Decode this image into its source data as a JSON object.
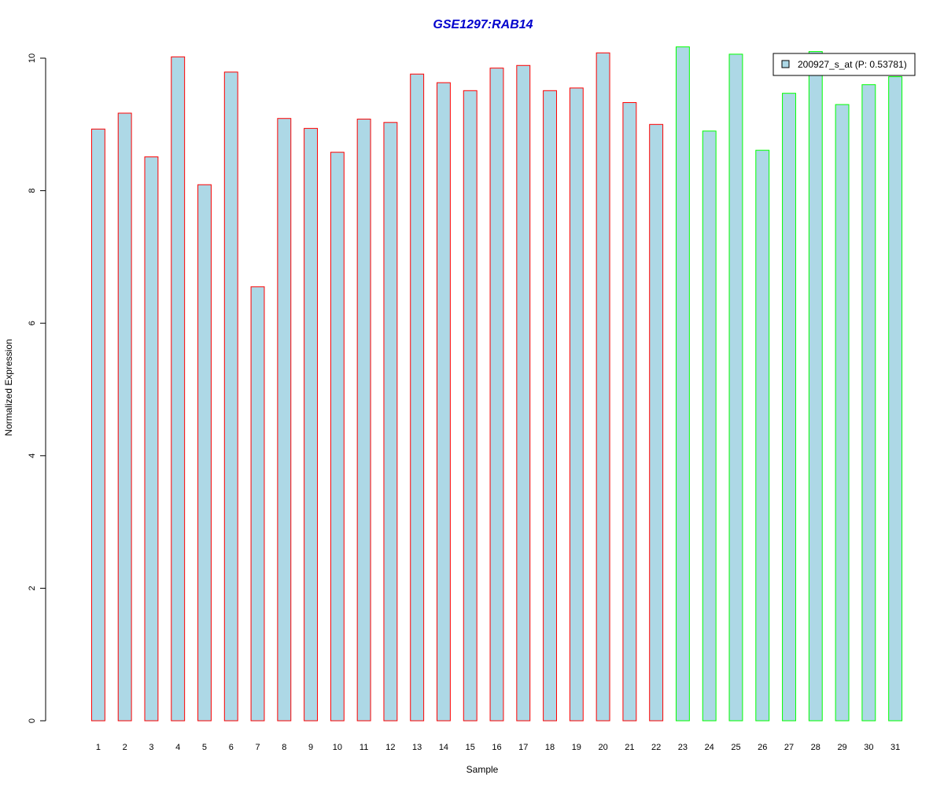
{
  "chart_data": {
    "type": "bar",
    "title": "GSE1297:RAB14",
    "xlabel": "Sample",
    "ylabel": "Normalized Expression",
    "ylim": [
      0,
      10
    ],
    "yticks": [
      0,
      2,
      4,
      6,
      8,
      10
    ],
    "categories": [
      "1",
      "2",
      "3",
      "4",
      "5",
      "6",
      "7",
      "8",
      "9",
      "10",
      "11",
      "12",
      "13",
      "14",
      "15",
      "16",
      "17",
      "18",
      "19",
      "20",
      "21",
      "22",
      "23",
      "24",
      "25",
      "26",
      "27",
      "28",
      "29",
      "30",
      "31"
    ],
    "values": [
      8.93,
      9.17,
      8.51,
      10.02,
      8.09,
      9.79,
      6.55,
      9.09,
      8.94,
      8.58,
      9.08,
      9.03,
      9.76,
      9.63,
      9.51,
      9.85,
      9.89,
      9.51,
      9.55,
      10.08,
      9.33,
      9.0,
      10.17,
      8.9,
      10.06,
      8.61,
      9.47,
      10.1,
      9.3,
      9.6,
      9.72
    ],
    "bar_fill": "#add8e6",
    "border_colors": [
      "#ff0000",
      "#ff0000",
      "#ff0000",
      "#ff0000",
      "#ff0000",
      "#ff0000",
      "#ff0000",
      "#ff0000",
      "#ff0000",
      "#ff0000",
      "#ff0000",
      "#ff0000",
      "#ff0000",
      "#ff0000",
      "#ff0000",
      "#ff0000",
      "#ff0000",
      "#ff0000",
      "#ff0000",
      "#ff0000",
      "#ff0000",
      "#ff0000",
      "#00ff00",
      "#00ff00",
      "#00ff00",
      "#00ff00",
      "#00ff00",
      "#00ff00",
      "#00ff00",
      "#00ff00",
      "#00ff00"
    ],
    "title_color": "#0000cd",
    "legend": {
      "label": "200927_s_at (P: 0.53781)",
      "placement": "top-right"
    },
    "grid": false
  }
}
